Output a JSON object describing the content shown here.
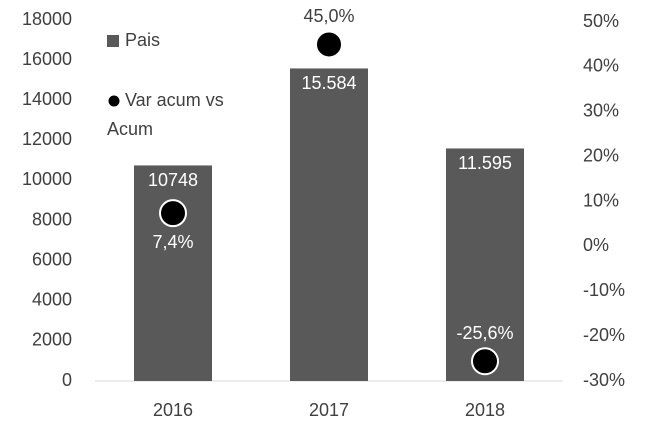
{
  "chart_data": {
    "type": "bar",
    "categories": [
      "2016",
      "2017",
      "2018"
    ],
    "series": [
      {
        "name": "Pais",
        "color": "#595959",
        "values": [
          10748,
          15584,
          11595
        ],
        "value_labels": [
          "10748",
          "15.584",
          "11.595"
        ]
      },
      {
        "name": "Var acum vs Acum",
        "color": "#000000",
        "axis": "y2",
        "type": "scatter",
        "values": [
          7.4,
          45.0,
          -25.6
        ],
        "value_labels": [
          "7,4%",
          "45,0%",
          "-25,6%"
        ]
      }
    ],
    "ylim": [
      0,
      18000
    ],
    "yticks": [
      0,
      2000,
      4000,
      6000,
      8000,
      10000,
      12000,
      14000,
      16000,
      18000
    ],
    "y2lim": [
      -30,
      50
    ],
    "y2ticks": [
      {
        "value": -30,
        "label": "-30%"
      },
      {
        "value": -20,
        "label": "-20%"
      },
      {
        "value": -10,
        "label": "-10%"
      },
      {
        "value": 0,
        "label": "0%"
      },
      {
        "value": 10,
        "label": "10%"
      },
      {
        "value": 20,
        "label": "20%"
      },
      {
        "value": 30,
        "label": "30%"
      },
      {
        "value": 40,
        "label": "40%"
      },
      {
        "value": 50,
        "label": "50%"
      }
    ],
    "legend": "top-left",
    "grid": false
  }
}
